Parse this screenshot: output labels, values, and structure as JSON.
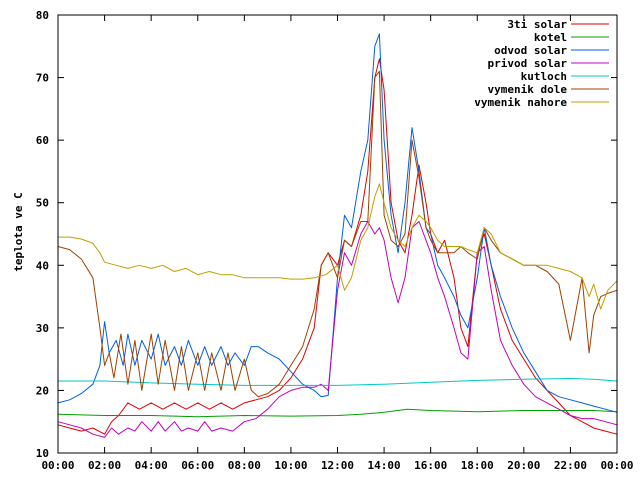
{
  "chart_data": {
    "type": "line",
    "title": "",
    "xlabel": "",
    "ylabel": "teplota ve C",
    "xlim": [
      0,
      24
    ],
    "ylim": [
      10,
      80
    ],
    "grid": false,
    "legend_position": "top-right",
    "x_tick_labels": [
      "00:00",
      "02:00",
      "04:00",
      "06:00",
      "08:00",
      "10:00",
      "12:00",
      "14:00",
      "16:00",
      "18:00",
      "20:00",
      "22:00",
      "00:00"
    ],
    "y_tick_labels": [
      "10",
      "20",
      "30",
      "40",
      "50",
      "60",
      "70",
      "80"
    ],
    "series": [
      {
        "name": "3ti solar",
        "color": "#e00000",
        "x": [
          0,
          0.5,
          1,
          1.5,
          2,
          2.3,
          2.6,
          3,
          3.5,
          4,
          4.5,
          5,
          5.5,
          6,
          6.5,
          7,
          7.5,
          8,
          8.5,
          9,
          9.5,
          10,
          10.5,
          11,
          11.3,
          11.6,
          12,
          12.3,
          12.6,
          13,
          13.3,
          13.6,
          13.8,
          14,
          14.3,
          14.6,
          14.9,
          15.2,
          15.5,
          15.8,
          16,
          16.3,
          16.6,
          17,
          17.3,
          17.6,
          18,
          18.3,
          18.6,
          19,
          19.5,
          20,
          20.5,
          21,
          21.5,
          22,
          22.5,
          23,
          23.5,
          24
        ],
        "y": [
          14.5,
          14,
          13.5,
          14,
          13,
          15,
          16,
          18,
          17,
          18,
          17,
          18,
          17,
          18,
          17,
          18,
          17,
          18,
          18.5,
          19,
          20,
          22,
          25,
          30,
          40,
          42,
          40,
          44,
          43,
          48,
          55,
          70,
          73,
          68,
          50,
          44,
          42,
          48,
          56,
          50,
          45,
          42,
          44,
          38,
          30,
          27,
          42,
          45,
          40,
          33,
          28,
          25,
          22,
          20,
          18,
          16,
          15,
          14,
          13.5,
          13
        ]
      },
      {
        "name": "kotel",
        "color": "#00a000",
        "x": [
          0,
          2,
          4,
          6,
          8,
          10,
          12,
          13,
          14,
          15,
          16,
          17,
          18,
          20,
          22,
          23,
          24
        ],
        "y": [
          16.2,
          16,
          16,
          15.8,
          16,
          15.9,
          16,
          16.2,
          16.5,
          17,
          16.8,
          16.7,
          16.6,
          16.8,
          16.8,
          16.8,
          16.6
        ]
      },
      {
        "name": "odvod solar",
        "color": "#0060e0",
        "x": [
          0,
          0.5,
          1,
          1.5,
          1.8,
          2,
          2.2,
          2.5,
          2.8,
          3,
          3.3,
          3.6,
          4,
          4.3,
          4.6,
          5,
          5.3,
          5.6,
          6,
          6.3,
          6.6,
          7,
          7.3,
          7.6,
          8,
          8.3,
          8.6,
          9,
          9.5,
          10,
          10.5,
          11,
          11.3,
          11.6,
          12,
          12.3,
          12.6,
          13,
          13.3,
          13.6,
          13.8,
          14,
          14.3,
          14.6,
          14.9,
          15.2,
          15.5,
          15.8,
          16,
          16.3,
          16.6,
          17,
          17.3,
          17.6,
          18,
          18.3,
          18.6,
          19,
          19.5,
          20,
          20.5,
          21,
          21.5,
          22,
          22.5,
          23,
          23.5,
          24
        ],
        "y": [
          18,
          18.5,
          19.5,
          21,
          24,
          31,
          26,
          28,
          24,
          29,
          24,
          28,
          25,
          29,
          24,
          27,
          24,
          28,
          24,
          27,
          24,
          27,
          24,
          26,
          24,
          27,
          27,
          26,
          25,
          23,
          21,
          20,
          19,
          19.2,
          38,
          48,
          46,
          55,
          60,
          75,
          77,
          60,
          48,
          42,
          50,
          62,
          55,
          46,
          45,
          40,
          38,
          35,
          32,
          30,
          38,
          46,
          40,
          35,
          30,
          26,
          23,
          20,
          19,
          18.5,
          18,
          17.5,
          17,
          16.5
        ]
      },
      {
        "name": "privod solar",
        "color": "#c000c0",
        "x": [
          0,
          0.5,
          1,
          1.5,
          2,
          2.3,
          2.6,
          3,
          3.3,
          3.6,
          4,
          4.3,
          4.6,
          5,
          5.3,
          5.6,
          6,
          6.3,
          6.6,
          7,
          7.5,
          8,
          8.5,
          9,
          9.5,
          10,
          10.5,
          11,
          11.3,
          11.6,
          12,
          12.3,
          12.6,
          13,
          13.3,
          13.6,
          13.8,
          14,
          14.3,
          14.6,
          14.9,
          15.2,
          15.5,
          15.8,
          16,
          16.3,
          16.6,
          17,
          17.3,
          17.6,
          18,
          18.3,
          18.6,
          19,
          19.5,
          20,
          20.5,
          21,
          21.5,
          22,
          22.5,
          23,
          23.5,
          24
        ],
        "y": [
          15,
          14.5,
          14,
          13,
          12.5,
          14,
          13,
          14,
          13.5,
          15,
          13.5,
          15,
          13.5,
          15,
          13.5,
          14,
          13.5,
          15,
          13.5,
          14,
          13.5,
          15,
          15.5,
          17,
          19,
          20,
          20.5,
          20.5,
          21,
          20,
          36,
          42,
          40,
          45,
          47,
          45,
          46,
          44,
          38,
          34,
          38,
          46,
          47,
          44,
          42,
          38,
          35,
          30,
          26,
          25,
          42,
          43,
          36,
          28,
          24,
          21,
          19,
          18,
          17,
          16,
          15.5,
          15.5,
          15,
          14.5
        ]
      },
      {
        "name": "kutloch",
        "color": "#00c8c8",
        "x": [
          0,
          2,
          4,
          6,
          8,
          10,
          12,
          14,
          16,
          18,
          20,
          22,
          23,
          24
        ],
        "y": [
          21.5,
          21.5,
          21.2,
          21,
          20.8,
          20.8,
          20.8,
          21,
          21.3,
          21.6,
          21.8,
          21.9,
          21.8,
          21.5
        ]
      },
      {
        "name": "vymenik dole",
        "color": "#a04000",
        "x": [
          0,
          0.5,
          1,
          1.5,
          1.8,
          2,
          2.2,
          2.4,
          2.7,
          3,
          3.3,
          3.6,
          4,
          4.3,
          4.6,
          5,
          5.3,
          5.6,
          6,
          6.3,
          6.6,
          7,
          7.3,
          7.6,
          8,
          8.3,
          8.6,
          9,
          9.5,
          10,
          10.5,
          11,
          11.3,
          11.6,
          12,
          12.3,
          12.6,
          13,
          13.3,
          13.6,
          13.8,
          14,
          14.3,
          14.6,
          14.9,
          15.2,
          15.5,
          15.8,
          16,
          16.3,
          16.6,
          17,
          17.3,
          17.6,
          18,
          18.3,
          18.6,
          19,
          19.5,
          20,
          20.5,
          21,
          21.5,
          22,
          22.5,
          22.8,
          23,
          23.3,
          23.6,
          24
        ],
        "y": [
          43,
          42.5,
          41,
          38,
          30,
          24,
          26,
          22,
          29,
          21,
          28,
          20,
          29,
          21,
          28,
          20,
          27,
          20,
          26,
          20,
          26,
          20,
          26,
          20,
          25,
          20,
          19,
          19.5,
          21,
          24,
          27,
          33,
          40,
          42,
          38,
          44,
          43,
          47,
          47,
          70,
          71,
          48,
          44,
          43,
          45,
          60,
          54,
          46,
          44,
          42,
          42,
          42,
          43,
          42,
          41,
          46,
          44,
          42,
          41,
          40,
          40,
          39,
          37,
          28,
          38,
          26,
          32,
          35,
          35.5,
          36
        ]
      },
      {
        "name": "vymenik nahore",
        "color": "#c0a000",
        "x": [
          0,
          0.5,
          1,
          1.5,
          1.8,
          2,
          2.5,
          3,
          3.5,
          4,
          4.5,
          5,
          5.5,
          6,
          6.5,
          7,
          7.5,
          8,
          8.5,
          9,
          9.5,
          10,
          10.5,
          11,
          11.5,
          12,
          12.3,
          12.6,
          13,
          13.3,
          13.6,
          13.8,
          14,
          14.3,
          14.6,
          14.9,
          15.2,
          15.5,
          15.8,
          16,
          16.3,
          16.6,
          17,
          17.3,
          17.6,
          18,
          18.3,
          18.6,
          19,
          19.5,
          20,
          20.5,
          21,
          21.5,
          22,
          22.5,
          22.8,
          23,
          23.3,
          23.6,
          24
        ],
        "y": [
          44.5,
          44.5,
          44.2,
          43.5,
          42,
          40.5,
          40,
          39.5,
          40,
          39.5,
          40,
          39,
          39.5,
          38.5,
          39,
          38.5,
          38.5,
          38,
          38,
          38,
          38,
          37.8,
          37.8,
          38,
          38.5,
          40,
          36,
          38,
          44,
          46,
          51,
          53,
          50,
          46,
          44,
          43,
          46,
          48,
          47,
          46,
          44,
          43,
          43,
          43,
          42.5,
          42,
          46,
          45,
          42,
          41,
          40,
          40,
          40,
          39.5,
          39,
          38,
          35,
          37,
          33,
          36,
          37.5
        ]
      }
    ]
  }
}
